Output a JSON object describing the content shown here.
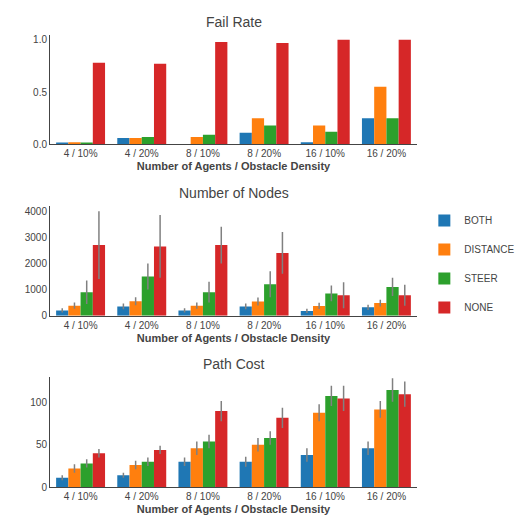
{
  "chart_data": [
    {
      "type": "bar",
      "title": "Fail Rate",
      "xlabel": "Number of Agents / Obstacle Density",
      "categories": [
        "4 / 10%",
        "4 / 20%",
        "8 / 10%",
        "8 / 20%",
        "16 / 10%",
        "16 / 20%"
      ],
      "series": [
        {
          "name": "BOTH",
          "color": "#1f77b4",
          "values": [
            0.01,
            0.06,
            0.0,
            0.11,
            0.02,
            0.25
          ]
        },
        {
          "name": "DISTANCE",
          "color": "#ff7f0e",
          "values": [
            0.02,
            0.06,
            0.07,
            0.25,
            0.18,
            0.55
          ]
        },
        {
          "name": "STEER",
          "color": "#2ca02c",
          "values": [
            0.01,
            0.07,
            0.09,
            0.18,
            0.12,
            0.25
          ]
        },
        {
          "name": "NONE",
          "color": "#d62728",
          "values": [
            0.78,
            0.77,
            0.98,
            0.97,
            1.0,
            1.0
          ]
        }
      ],
      "ylim": [
        0,
        1.05
      ],
      "yticks": [
        {
          "value": 0,
          "label": "0.0"
        },
        0.5,
        {
          "value": 1,
          "label": "1.0"
        }
      ],
      "grid": false
    },
    {
      "type": "bar",
      "title": "Number of Nodes",
      "xlabel": "Number of Agents / Obstacle Density",
      "categories": [
        "4 / 10%",
        "4 / 20%",
        "8 / 10%",
        "8 / 20%",
        "16 / 10%",
        "16 / 20%"
      ],
      "series": [
        {
          "name": "BOTH",
          "color": "#1f77b4",
          "values": [
            200,
            350,
            200,
            350,
            180,
            320
          ],
          "errors": [
            80,
            110,
            80,
            110,
            80,
            100
          ]
        },
        {
          "name": "DISTANCE",
          "color": "#ff7f0e",
          "values": [
            380,
            550,
            380,
            540,
            370,
            480
          ],
          "errors": [
            120,
            150,
            120,
            150,
            120,
            130
          ]
        },
        {
          "name": "STEER",
          "color": "#2ca02c",
          "values": [
            900,
            1500,
            900,
            1200,
            850,
            1100
          ],
          "errors": [
            450,
            500,
            400,
            500,
            300,
            350
          ]
        },
        {
          "name": "NONE",
          "color": "#d62728",
          "values": [
            2700,
            2650,
            2700,
            2400,
            780,
            780
          ],
          "errors": [
            1300,
            1200,
            700,
            800,
            500,
            400
          ]
        }
      ],
      "ylim": [
        0,
        4200
      ],
      "yticks": [
        0,
        1000,
        2000,
        3000,
        4000
      ],
      "grid": false,
      "legend": "upper right"
    },
    {
      "type": "bar",
      "title": "Path Cost",
      "xlabel": "Number of Agents / Obstacle Density",
      "categories": [
        "4 / 10%",
        "4 / 20%",
        "8 / 10%",
        "8 / 20%",
        "16 / 10%",
        "16 / 20%"
      ],
      "series": [
        {
          "name": "BOTH",
          "color": "#1f77b4",
          "values": [
            11,
            14,
            30,
            30,
            38,
            46
          ],
          "errors": [
            3,
            3,
            5,
            6,
            8,
            8
          ]
        },
        {
          "name": "DISTANCE",
          "color": "#ff7f0e",
          "values": [
            22,
            26,
            46,
            50,
            88,
            92
          ],
          "errors": [
            5,
            5,
            8,
            8,
            10,
            10
          ]
        },
        {
          "name": "STEER",
          "color": "#2ca02c",
          "values": [
            28,
            30,
            54,
            58,
            108,
            115
          ],
          "errors": [
            5,
            5,
            8,
            8,
            12,
            14
          ]
        },
        {
          "name": "NONE",
          "color": "#d62728",
          "values": [
            40,
            44,
            90,
            82,
            105,
            110
          ],
          "errors": [
            5,
            5,
            12,
            12,
            15,
            15
          ]
        }
      ],
      "ylim": [
        0,
        130
      ],
      "yticks": [
        0,
        50,
        100
      ],
      "grid": false
    }
  ]
}
